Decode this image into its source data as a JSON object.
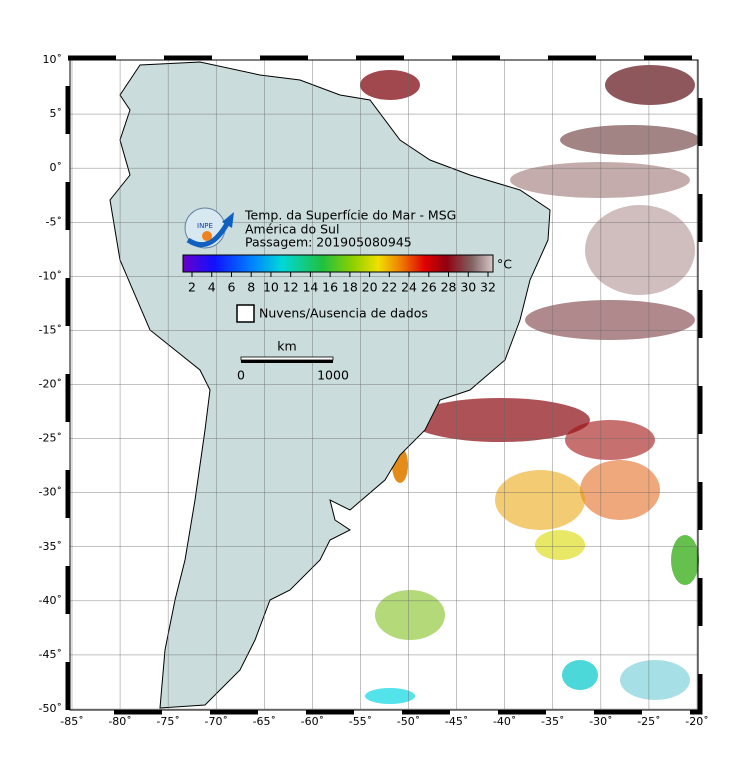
{
  "legend": {
    "title": "Temp. da Superfície do Mar - MSG",
    "region": "América do Sul",
    "pass": "Passagem: 201905080945",
    "colorbar_ticks": [
      "2",
      "4",
      "6",
      "8",
      "10",
      "12",
      "14",
      "16",
      "18",
      "20",
      "22",
      "24",
      "26",
      "28",
      "30",
      "32"
    ],
    "unit": "°C",
    "no_data": "Nuvens/Ausencia de dados"
  },
  "scale": {
    "unit": "km",
    "start": "0",
    "end": "1000"
  },
  "axes": {
    "lon": [
      "-85˚",
      "-80˚",
      "-75˚",
      "-70˚",
      "-65˚",
      "-60˚",
      "-55˚",
      "-50˚",
      "-45˚",
      "-40˚",
      "-35˚",
      "-30˚",
      "-25˚",
      "-20˚"
    ],
    "lat": [
      "10˚",
      "5˚",
      "0˚",
      "-5˚",
      "-10˚",
      "-15˚",
      "-20˚",
      "-25˚",
      "-30˚",
      "-35˚",
      "-40˚",
      "-45˚",
      "-50˚"
    ]
  }
}
